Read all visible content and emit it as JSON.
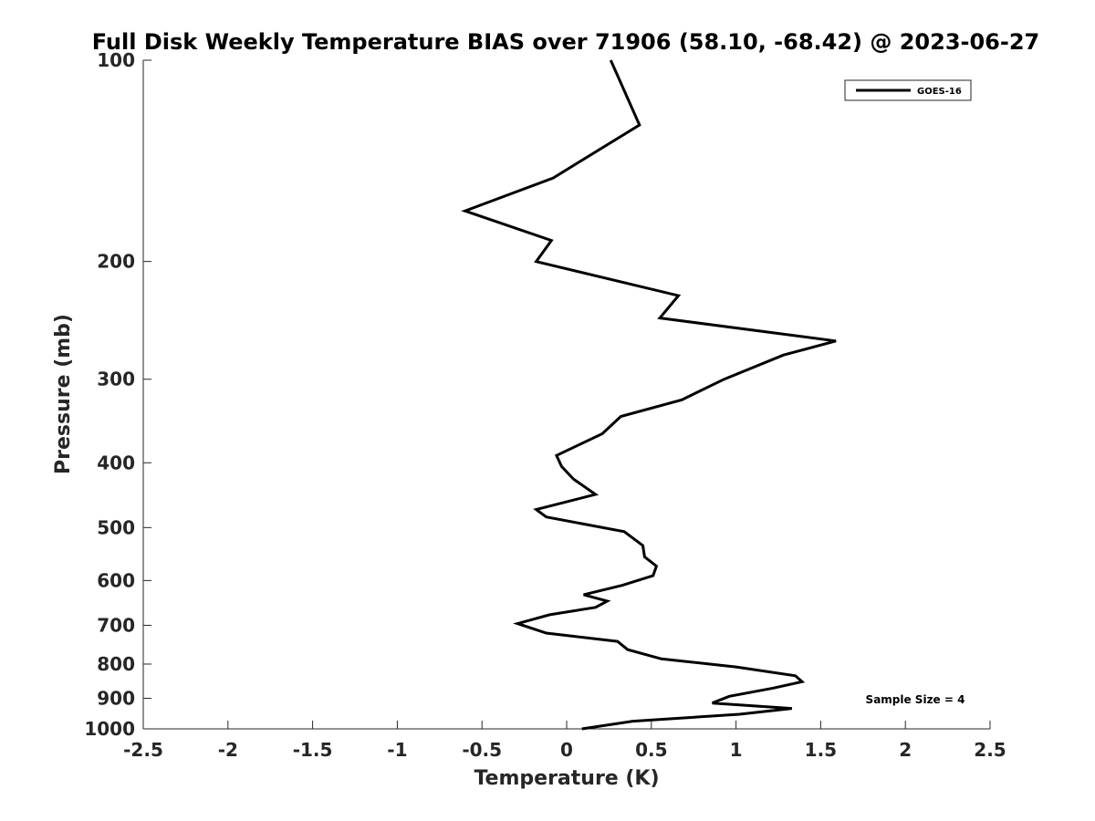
{
  "chart_data": {
    "type": "line",
    "title": "Full Disk Weekly Temperature BIAS over 71906 (58.10, -68.42) @ 2023-06-27",
    "xlabel": "Temperature (K)",
    "ylabel": "Pressure (mb)",
    "xlim": [
      -2.5,
      2.5
    ],
    "ylim": [
      1000,
      100
    ],
    "y_scale": "log",
    "y_reversed": true,
    "grid": false,
    "legend_position": "top-right",
    "x_ticks": [
      "-2.5",
      "-2",
      "-1.5",
      "-1",
      "-0.5",
      "0",
      "0.5",
      "1",
      "1.5",
      "2",
      "2.5"
    ],
    "y_ticks": [
      "100",
      "200",
      "300",
      "400",
      "500",
      "600",
      "700",
      "800",
      "900",
      "1000"
    ],
    "annotation": "Sample Size = 4",
    "series": [
      {
        "name": "GOES-16",
        "color": "#000000",
        "points": [
          [
            0.26,
            100
          ],
          [
            0.43,
            125
          ],
          [
            -0.08,
            150
          ],
          [
            -0.6,
            168
          ],
          [
            -0.09,
            186
          ],
          [
            -0.18,
            200
          ],
          [
            0.66,
            225
          ],
          [
            0.55,
            243
          ],
          [
            1.59,
            263
          ],
          [
            1.28,
            276
          ],
          [
            0.93,
            300
          ],
          [
            0.68,
            322
          ],
          [
            0.32,
            341
          ],
          [
            0.21,
            362
          ],
          [
            -0.06,
            390
          ],
          [
            -0.03,
            405
          ],
          [
            0.04,
            423
          ],
          [
            0.17,
            446
          ],
          [
            -0.18,
            470
          ],
          [
            -0.12,
            482
          ],
          [
            0.34,
            507
          ],
          [
            0.45,
            532
          ],
          [
            0.46,
            553
          ],
          [
            0.53,
            571
          ],
          [
            0.51,
            590
          ],
          [
            0.33,
            610
          ],
          [
            0.1,
            630
          ],
          [
            0.24,
            644
          ],
          [
            0.17,
            658
          ],
          [
            -0.1,
            675
          ],
          [
            -0.29,
            696
          ],
          [
            -0.12,
            719
          ],
          [
            0.3,
            740
          ],
          [
            0.36,
            761
          ],
          [
            0.56,
            786
          ],
          [
            1.0,
            808
          ],
          [
            1.35,
            833
          ],
          [
            1.39,
            850
          ],
          [
            1.22,
            869
          ],
          [
            0.96,
            894
          ],
          [
            0.86,
            915
          ],
          [
            1.33,
            932
          ],
          [
            1.02,
            951
          ],
          [
            0.39,
            974
          ],
          [
            0.09,
            1000
          ]
        ]
      }
    ]
  }
}
